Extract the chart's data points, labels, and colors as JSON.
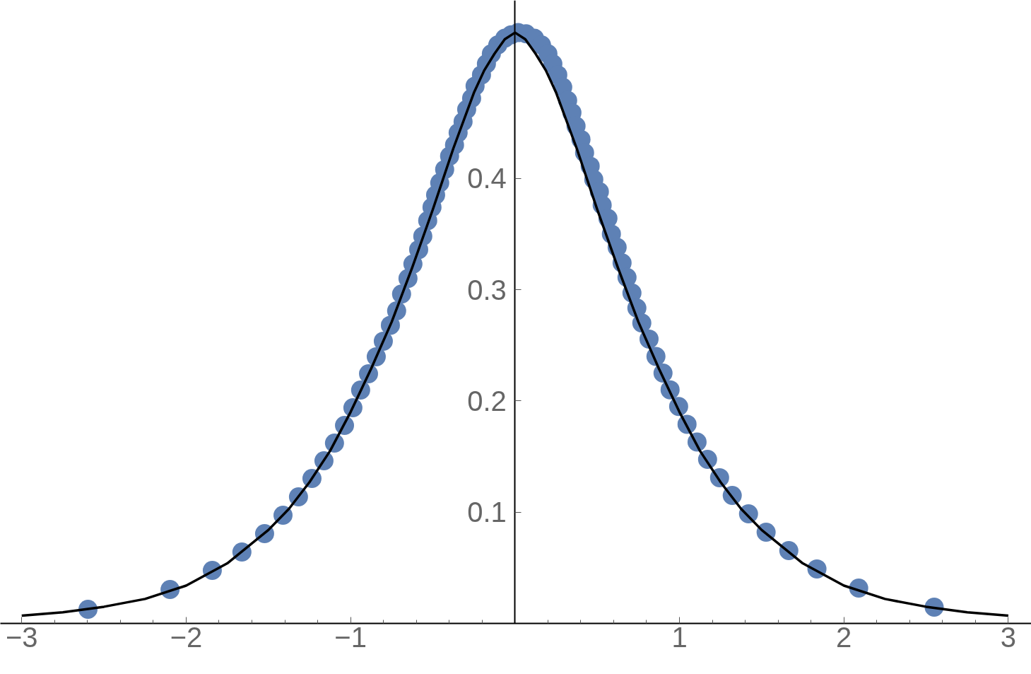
{
  "chart_data": {
    "type": "scatter",
    "xlim": [
      -3.13,
      3.14
    ],
    "ylim": [
      0,
      0.56
    ],
    "xticks": [
      {
        "value": -3,
        "label": "−3"
      },
      {
        "value": -2.8,
        "label": null
      },
      {
        "value": -2.6,
        "label": null
      },
      {
        "value": -2.4,
        "label": null
      },
      {
        "value": -2.2,
        "label": null
      },
      {
        "value": -2,
        "label": "−2"
      },
      {
        "value": -1.8,
        "label": null
      },
      {
        "value": -1.6,
        "label": null
      },
      {
        "value": -1.4,
        "label": null
      },
      {
        "value": -1.2,
        "label": null
      },
      {
        "value": -1,
        "label": "−1"
      },
      {
        "value": -0.8,
        "label": null
      },
      {
        "value": -0.6,
        "label": null
      },
      {
        "value": -0.4,
        "label": null
      },
      {
        "value": -0.2,
        "label": null
      },
      {
        "value": 0.2,
        "label": null
      },
      {
        "value": 0.4,
        "label": null
      },
      {
        "value": 0.6,
        "label": null
      },
      {
        "value": 0.8,
        "label": null
      },
      1,
      {
        "value": 1.2,
        "label": null
      },
      {
        "value": 1.4,
        "label": null
      },
      {
        "value": 1.6,
        "label": null
      },
      {
        "value": 1.8,
        "label": null
      },
      2,
      {
        "value": 2.2,
        "label": null
      },
      {
        "value": 2.4,
        "label": null
      },
      {
        "value": 2.6,
        "label": null
      },
      {
        "value": 2.8,
        "label": null
      },
      3
    ],
    "yticks": [
      0.1,
      0.2,
      0.3,
      0.4
    ],
    "grid": false,
    "series": [
      {
        "marker": "circle",
        "color": "#5e81b5",
        "x": [
          -2.597,
          -2.098,
          -1.841,
          -1.661,
          -1.523,
          -1.411,
          -1.317,
          -1.235,
          -1.162,
          -1.098,
          -1.037,
          -0.986,
          -0.939,
          -0.891,
          -0.844,
          -0.801,
          -0.758,
          -0.72,
          -0.69,
          -0.651,
          -0.621,
          -0.586,
          -0.561,
          -0.531,
          -0.505,
          -0.483,
          -0.458,
          -0.428,
          -0.398,
          -0.368,
          -0.346,
          -0.316,
          -0.294,
          -0.264,
          -0.243,
          -0.204,
          -0.174,
          -0.144,
          -0.105,
          -0.062,
          -0.024,
          0.019,
          0.067,
          0.118,
          0.161,
          0.2,
          0.23,
          0.26,
          0.29,
          0.32,
          0.346,
          0.371,
          0.401,
          0.423,
          0.457,
          0.479,
          0.513,
          0.53,
          0.565,
          0.586,
          0.621,
          0.651,
          0.681,
          0.711,
          0.741,
          0.771,
          0.815,
          0.857,
          0.9,
          0.943,
          0.995,
          1.046,
          1.107,
          1.171,
          1.244,
          1.321,
          1.42,
          1.527,
          1.665,
          1.836,
          2.09,
          2.549
        ],
        "values": [
          0.0127,
          0.0305,
          0.0477,
          0.0642,
          0.0807,
          0.0973,
          0.1138,
          0.1303,
          0.1462,
          0.1621,
          0.178,
          0.1939,
          0.2098,
          0.2244,
          0.2397,
          0.2537,
          0.268,
          0.281,
          0.296,
          0.31,
          0.323,
          0.336,
          0.348,
          0.362,
          0.374,
          0.385,
          0.396,
          0.408,
          0.42,
          0.43,
          0.441,
          0.451,
          0.462,
          0.472,
          0.483,
          0.493,
          0.503,
          0.512,
          0.52,
          0.526,
          0.529,
          0.531,
          0.53,
          0.526,
          0.52,
          0.512,
          0.503,
          0.493,
          0.482,
          0.47,
          0.459,
          0.447,
          0.435,
          0.423,
          0.411,
          0.399,
          0.388,
          0.376,
          0.364,
          0.35,
          0.338,
          0.324,
          0.311,
          0.297,
          0.2835,
          0.27,
          0.2556,
          0.24,
          0.225,
          0.21,
          0.195,
          0.179,
          0.163,
          0.1475,
          0.131,
          0.1151,
          0.0985,
          0.082,
          0.0655,
          0.049,
          0.0318,
          0.0146
        ]
      },
      {
        "type": "line",
        "marker": "none",
        "color": "#000000",
        "x": [
          -3,
          -2.75,
          -2.5,
          -2.25,
          -2,
          -1.75,
          -1.5,
          -1.375,
          -1.25,
          -1.125,
          -1,
          -0.875,
          -0.75,
          -0.625,
          -0.5,
          -0.375,
          -0.25,
          -0.1875,
          -0.125,
          -0.0625,
          0,
          0.0625,
          0.125,
          0.1875,
          0.25,
          0.375,
          0.5,
          0.625,
          0.75,
          0.875,
          1,
          1.125,
          1.25,
          1.375,
          1.5,
          1.75,
          2,
          2.25,
          2.5,
          2.75,
          3
        ],
        "values": [
          0.007,
          0.01,
          0.015,
          0.022,
          0.034,
          0.054,
          0.084,
          0.103,
          0.127,
          0.155,
          0.19,
          0.229,
          0.271,
          0.32,
          0.372,
          0.427,
          0.477,
          0.497,
          0.512,
          0.525,
          0.531,
          0.525,
          0.512,
          0.497,
          0.477,
          0.427,
          0.372,
          0.32,
          0.271,
          0.229,
          0.19,
          0.155,
          0.127,
          0.103,
          0.084,
          0.054,
          0.034,
          0.022,
          0.015,
          0.01,
          0.007
        ]
      }
    ]
  }
}
